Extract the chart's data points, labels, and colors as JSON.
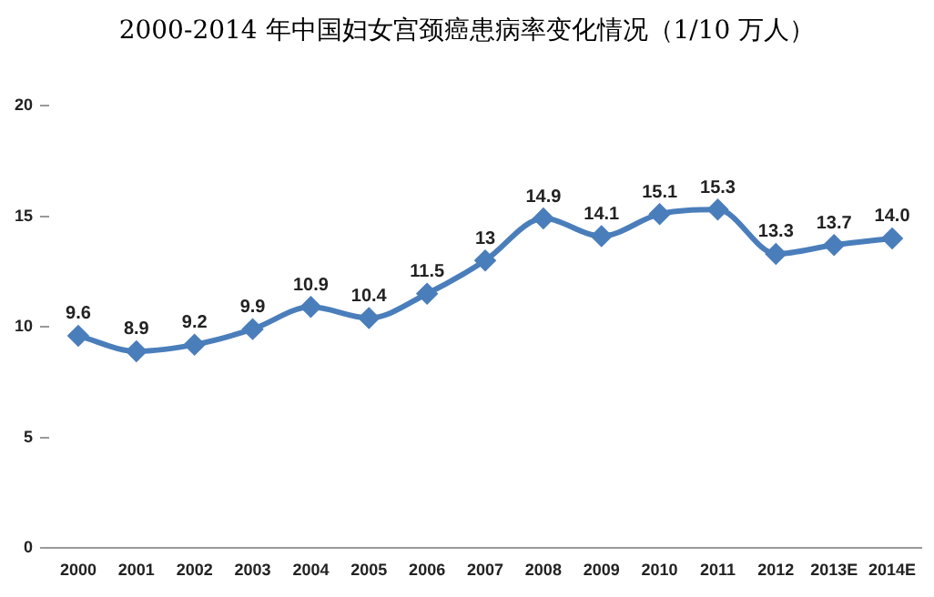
{
  "chart_data": {
    "type": "line",
    "title": "2000-2014 年中国妇女宫颈癌患病率变化情况（1/10 万人）",
    "categories": [
      "2000",
      "2001",
      "2002",
      "2003",
      "2004",
      "2005",
      "2006",
      "2007",
      "2008",
      "2009",
      "2010",
      "2011",
      "2012",
      "2013E",
      "2014E"
    ],
    "series": [
      {
        "color": "#4a7ebb",
        "values": [
          9.6,
          8.9,
          9.2,
          9.9,
          10.9,
          10.4,
          11.5,
          13,
          14.9,
          14.1,
          15.1,
          15.3,
          13.3,
          13.7,
          14.0
        ]
      }
    ],
    "value_labels": [
      "9.6",
      "8.9",
      "9.2",
      "9.9",
      "10.9",
      "10.4",
      "11.5",
      "13",
      "14.9",
      "14.1",
      "15.1",
      "15.3",
      "13.3",
      "13.7",
      "14.0"
    ],
    "ylim": [
      0,
      20
    ],
    "yticks": [
      0,
      5,
      10,
      15,
      20
    ],
    "grid": false,
    "legend": false,
    "marker": "diamond",
    "line_style": "solid"
  }
}
